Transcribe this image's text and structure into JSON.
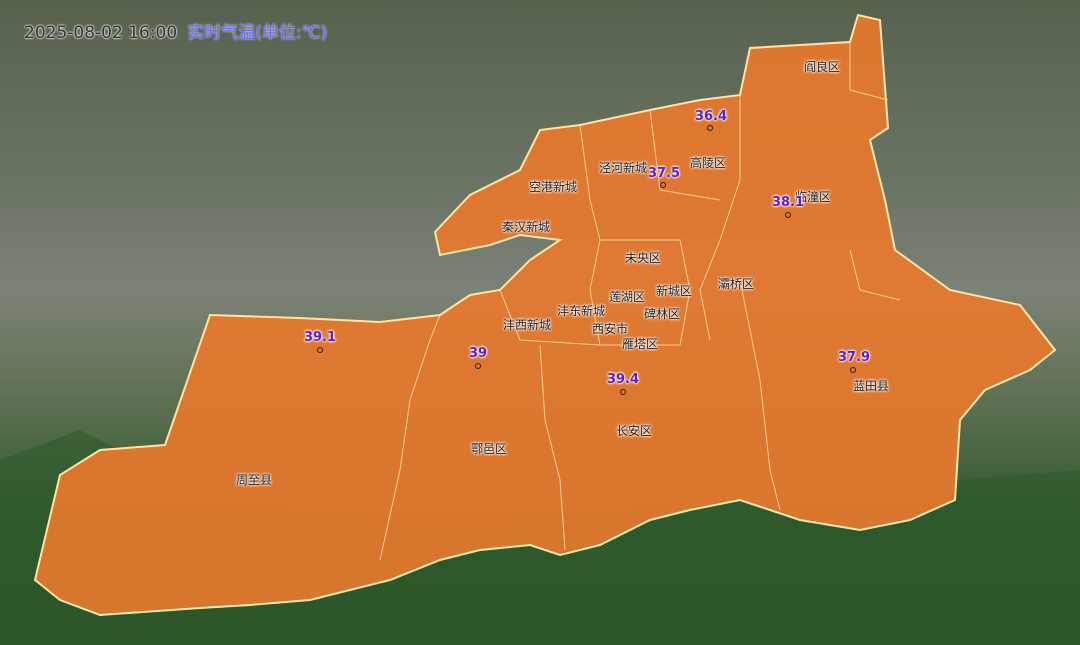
{
  "title": {
    "time": "2025-08-02 16:00",
    "unit": "实时气温(单位:℃)"
  },
  "colors": {
    "fill": "#e8782e",
    "border": "#f6e7a8",
    "value": "#5a1fd0"
  },
  "districts": [
    "阎良区",
    "泾河新城",
    "高陵区",
    "空港新城",
    "临潼区",
    "秦汉新城",
    "未央区",
    "灞桥区",
    "莲湖区",
    "新城区",
    "碑林区",
    "沣东新城",
    "沣西新城",
    "西安市",
    "雁塔区",
    "蓝田县",
    "长安区",
    "鄠邑区",
    "周至县"
  ],
  "temperatures": [
    "36.4",
    "37.5",
    "38.1",
    "39.1",
    "39",
    "39.4",
    "37.9"
  ]
}
